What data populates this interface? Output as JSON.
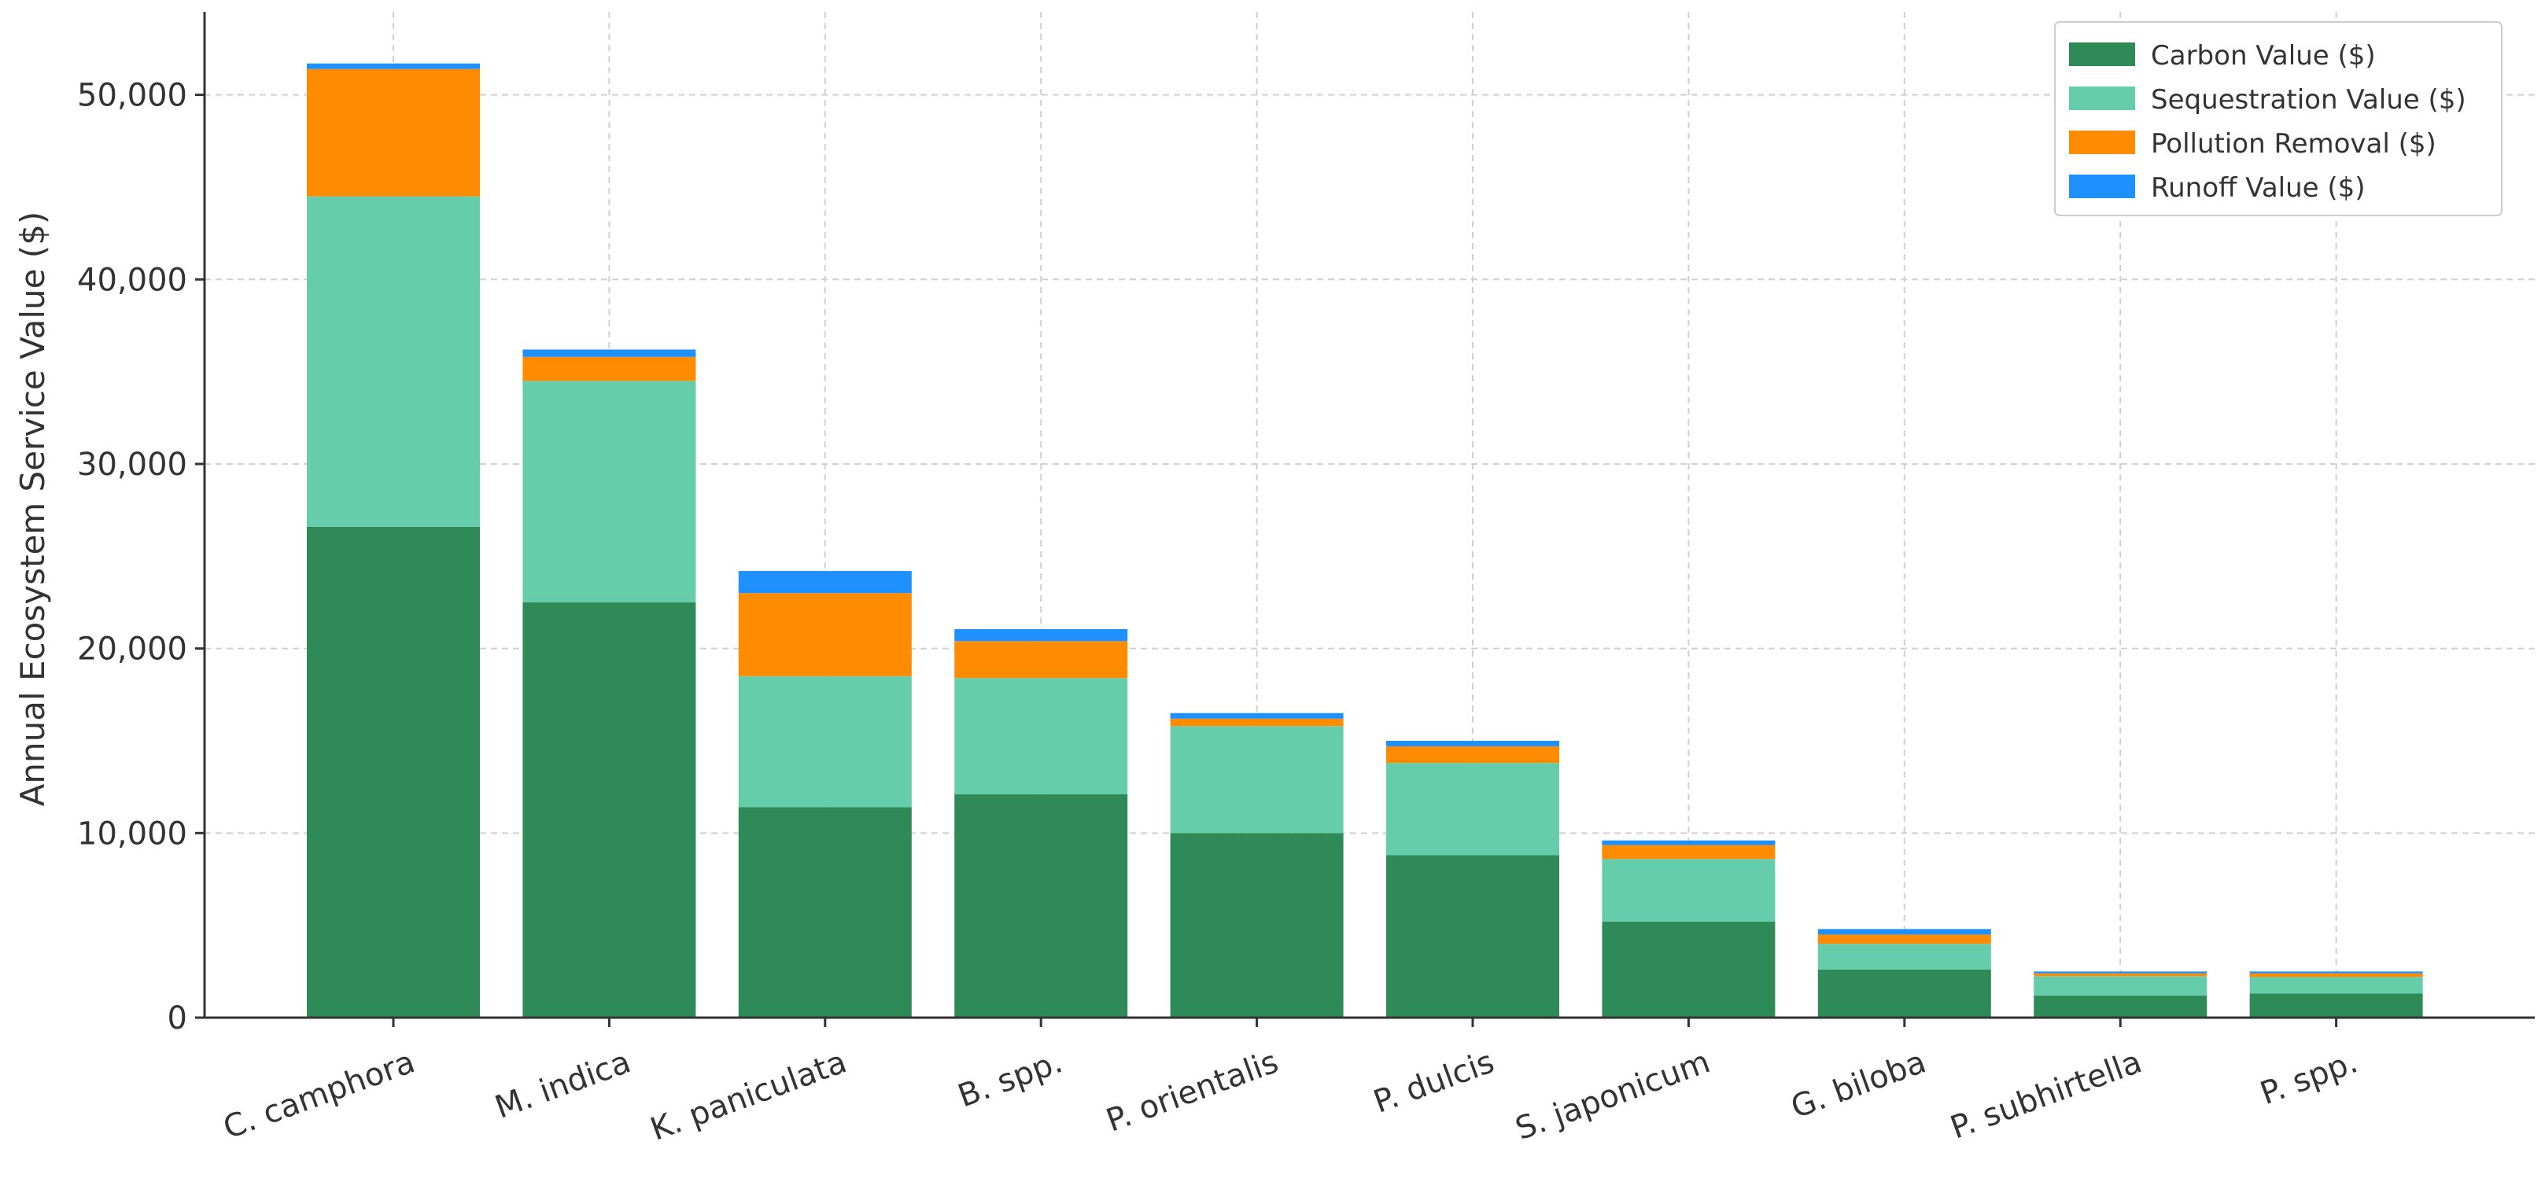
{
  "chart_data": {
    "type": "bar",
    "stacked": true,
    "title": "",
    "xlabel": "",
    "ylabel": "Annual Ecosystem Service Value ($)",
    "ylim": [
      0,
      54500
    ],
    "yticks": [
      0,
      10000,
      20000,
      30000,
      40000,
      50000
    ],
    "ytick_labels": [
      "0",
      "10,000",
      "20,000",
      "30,000",
      "40,000",
      "50,000"
    ],
    "grid": true,
    "legend_position": "top-right",
    "categories": [
      "C. camphora",
      "M. indica",
      "K. paniculata",
      "B. spp.",
      "P. orientalis",
      "P. dulcis",
      "S. japonicum",
      "G. biloba",
      "P. subhirtella",
      "P. spp."
    ],
    "series": [
      {
        "name": "Carbon Value ($)",
        "color": "#2e8b57",
        "values": [
          26600,
          22500,
          11400,
          12100,
          10000,
          8800,
          5200,
          2600,
          1200,
          1300
        ]
      },
      {
        "name": "Sequestration Value ($)",
        "color": "#66cdaa",
        "values": [
          17900,
          12000,
          7100,
          6300,
          5800,
          5000,
          3400,
          1400,
          1050,
          900
        ]
      },
      {
        "name": "Pollution Removal ($)",
        "color": "#ff8c00",
        "values": [
          6900,
          1300,
          4500,
          2000,
          400,
          900,
          750,
          500,
          150,
          200
        ]
      },
      {
        "name": "Runoff Value ($)",
        "color": "#1e90ff",
        "values": [
          300,
          400,
          1200,
          650,
          300,
          300,
          250,
          300,
          100,
          100
        ]
      }
    ]
  }
}
